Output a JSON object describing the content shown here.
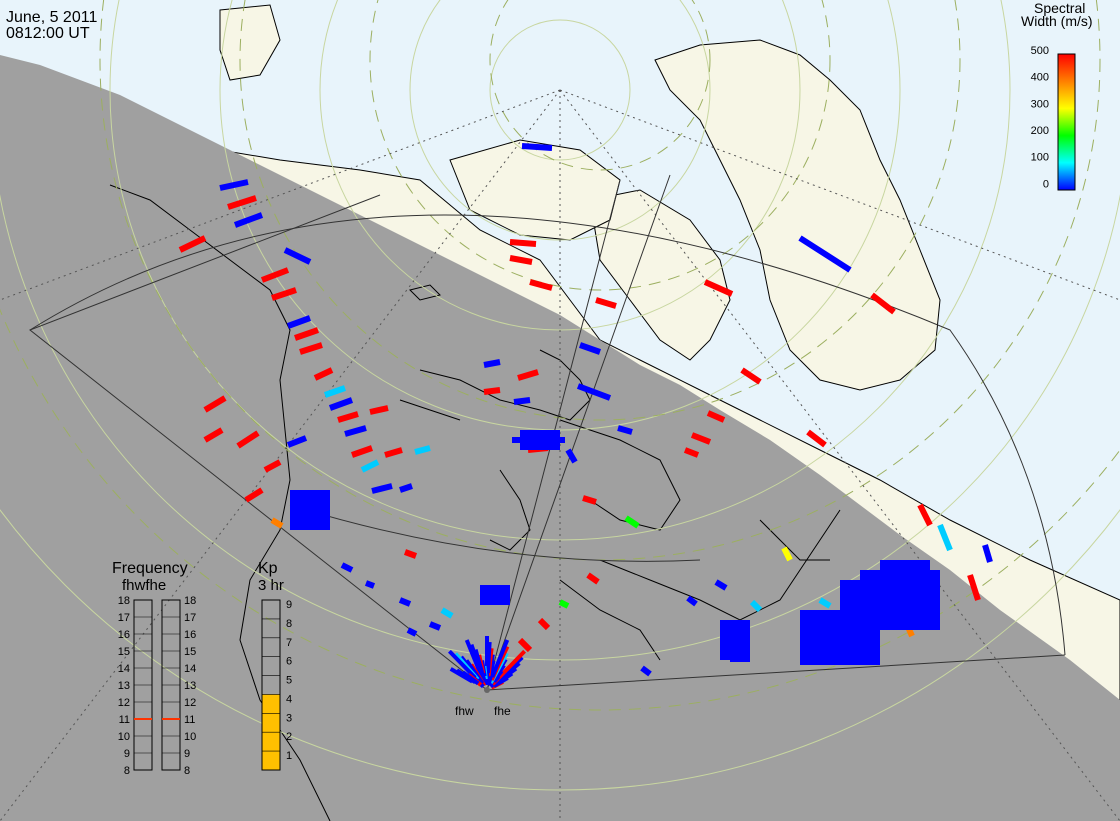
{
  "header": {
    "date": "June, 5 2011",
    "time": "0812:00 UT"
  },
  "colorbar": {
    "title_line1": "Spectral",
    "title_line2": "Width (m/s)",
    "ticks": [
      "500",
      "400",
      "300",
      "200",
      "100",
      "0"
    ],
    "colors": [
      "#ff0000",
      "#ff7f00",
      "#ffff00",
      "#00ff00",
      "#00ffff",
      "#0000ff"
    ]
  },
  "radars": {
    "labels": [
      "fhw",
      "fhe"
    ]
  },
  "frequency_panel": {
    "title": "Frequency",
    "subtitle": "fhwfhe",
    "ticks": [
      "18",
      "17",
      "16",
      "15",
      "14",
      "13",
      "12",
      "11",
      "10",
      "9",
      "8"
    ],
    "fhw_mhz": 11,
    "fhe_mhz": 11,
    "marker_color": "#ff3300"
  },
  "kp_panel": {
    "title": "Kp",
    "subtitle": "3 hr",
    "ticks": [
      "9",
      "8",
      "7",
      "6",
      "5",
      "4",
      "3",
      "2",
      "1"
    ],
    "value": 4,
    "fill_color": "#ffc000"
  },
  "map_colors": {
    "ocean": "#e8f4fb",
    "land": "#f7f6e6",
    "night": "#a0a0a0",
    "grid": "#c8d6a0"
  }
}
